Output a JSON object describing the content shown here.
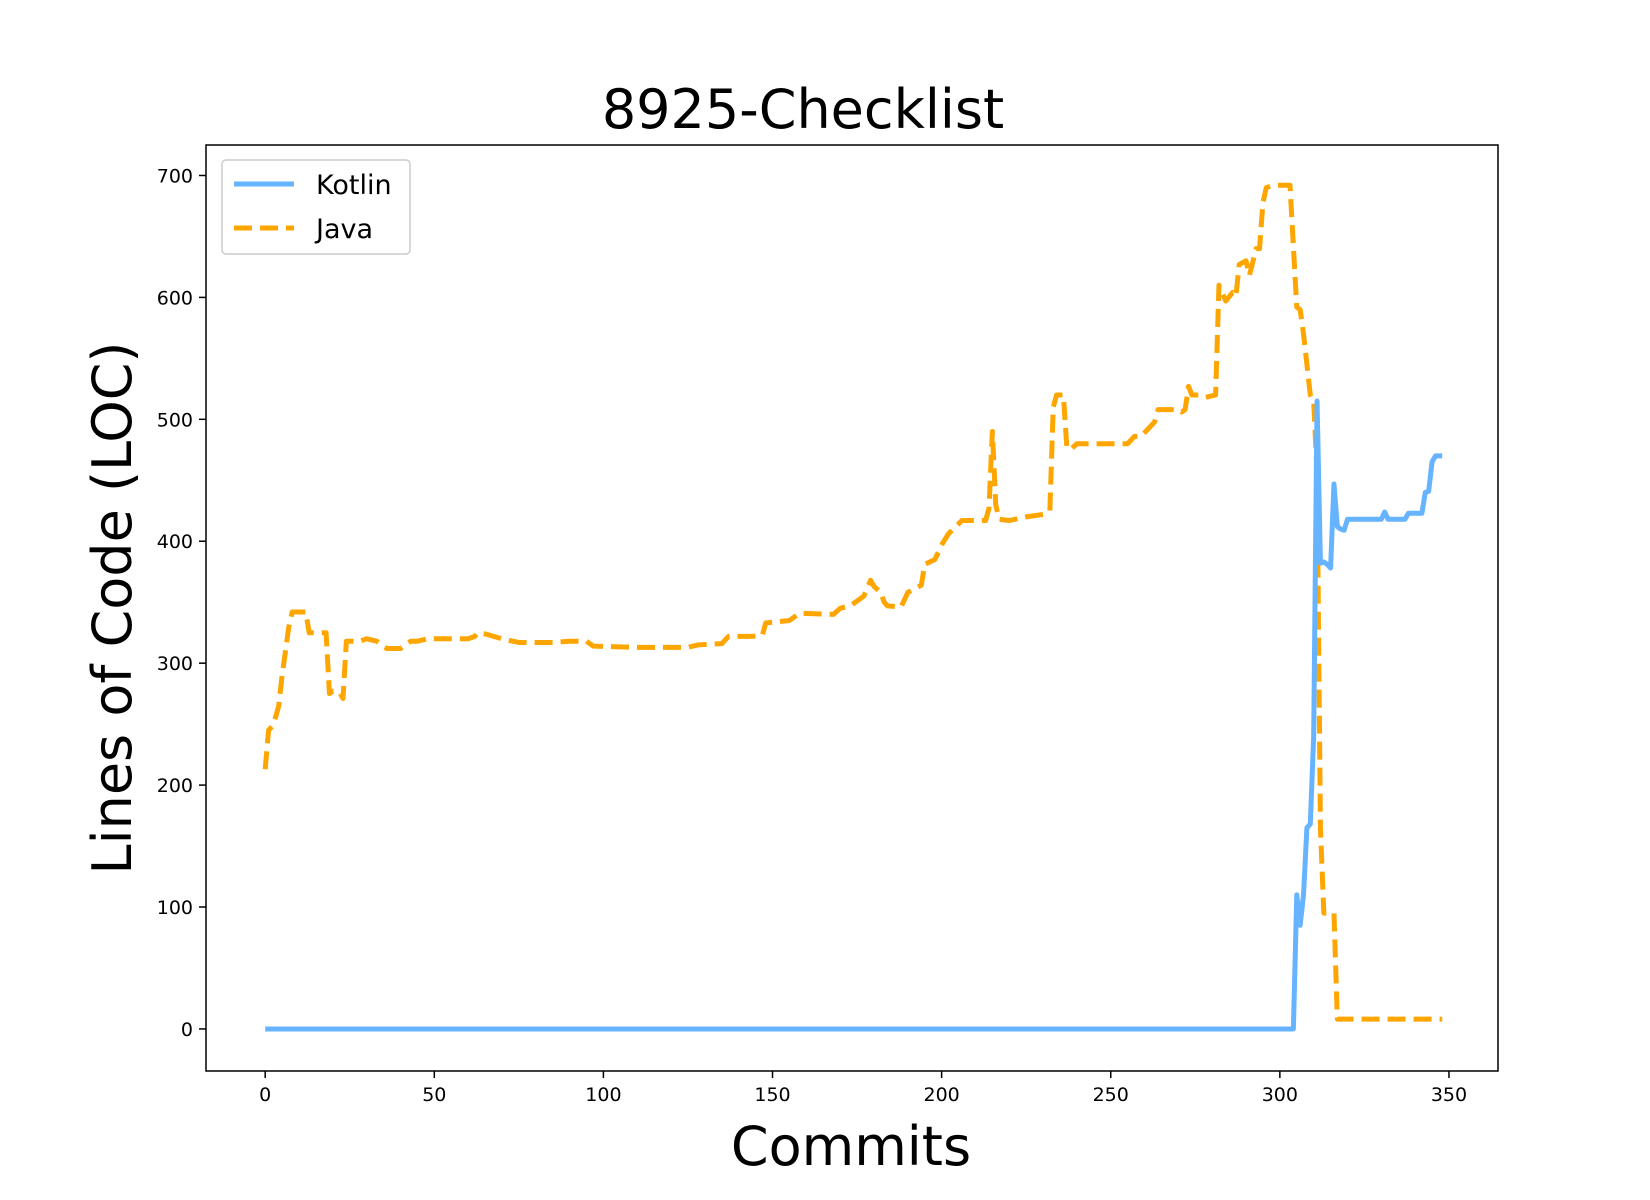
{
  "chart_data": {
    "type": "line",
    "title": "8925-Checklist",
    "xlabel": "Commits",
    "ylabel": "Lines of Code (LOC)",
    "xlim": [
      -17.5,
      364.5
    ],
    "ylim": [
      -34.5,
      725
    ],
    "xticks": [
      0,
      50,
      100,
      150,
      200,
      250,
      300,
      350
    ],
    "yticks": [
      0,
      100,
      200,
      300,
      400,
      500,
      600,
      700
    ],
    "grid": false,
    "legend_position": "top-left",
    "series": [
      {
        "name": "Kotlin",
        "color": "#66b3ff",
        "style": "solid",
        "points": [
          [
            0,
            0
          ],
          [
            304,
            0
          ],
          [
            305,
            110
          ],
          [
            306,
            85
          ],
          [
            307,
            110
          ],
          [
            308,
            165
          ],
          [
            309,
            168
          ],
          [
            310,
            240
          ],
          [
            311,
            515
          ],
          [
            312,
            382
          ],
          [
            313,
            383
          ],
          [
            314,
            381
          ],
          [
            315,
            378
          ],
          [
            316,
            447
          ],
          [
            317,
            412
          ],
          [
            318,
            410
          ],
          [
            319,
            409
          ],
          [
            320,
            418
          ],
          [
            325,
            418
          ],
          [
            330,
            418
          ],
          [
            331,
            424
          ],
          [
            332,
            418
          ],
          [
            337,
            418
          ],
          [
            338,
            423
          ],
          [
            342,
            423
          ],
          [
            343,
            440
          ],
          [
            344,
            441
          ],
          [
            345,
            465
          ],
          [
            346,
            470
          ],
          [
            348,
            470
          ]
        ]
      },
      {
        "name": "Java",
        "color": "#ffa500",
        "style": "dashed",
        "points": [
          [
            0,
            213
          ],
          [
            1,
            245
          ],
          [
            2,
            248
          ],
          [
            3,
            255
          ],
          [
            4,
            265
          ],
          [
            5,
            290
          ],
          [
            6,
            310
          ],
          [
            7,
            330
          ],
          [
            8,
            342
          ],
          [
            12,
            342
          ],
          [
            13,
            325
          ],
          [
            18,
            325
          ],
          [
            19,
            275
          ],
          [
            20,
            277
          ],
          [
            22,
            276
          ],
          [
            23,
            271
          ],
          [
            24,
            318
          ],
          [
            28,
            318
          ],
          [
            30,
            320
          ],
          [
            33,
            318
          ],
          [
            36,
            312
          ],
          [
            40,
            312
          ],
          [
            43,
            318
          ],
          [
            45,
            318
          ],
          [
            48,
            320
          ],
          [
            52,
            320
          ],
          [
            60,
            320
          ],
          [
            62,
            322
          ],
          [
            63,
            325
          ],
          [
            65,
            324
          ],
          [
            70,
            320
          ],
          [
            75,
            317
          ],
          [
            85,
            317
          ],
          [
            90,
            318
          ],
          [
            95,
            318
          ],
          [
            97,
            314
          ],
          [
            110,
            313
          ],
          [
            125,
            313
          ],
          [
            128,
            315
          ],
          [
            135,
            316
          ],
          [
            137,
            322
          ],
          [
            144,
            322
          ],
          [
            147,
            323
          ],
          [
            148,
            333
          ],
          [
            155,
            335
          ],
          [
            158,
            341
          ],
          [
            168,
            340
          ],
          [
            170,
            345
          ],
          [
            173,
            347
          ],
          [
            177,
            355
          ],
          [
            179,
            368
          ],
          [
            180,
            363
          ],
          [
            182,
            358
          ],
          [
            183,
            350
          ],
          [
            184,
            347
          ],
          [
            188,
            346
          ],
          [
            190,
            358
          ],
          [
            192,
            361
          ],
          [
            194,
            364
          ],
          [
            195,
            381
          ],
          [
            198,
            385
          ],
          [
            200,
            397
          ],
          [
            202,
            406
          ],
          [
            206,
            417
          ],
          [
            213,
            417
          ],
          [
            214,
            427
          ],
          [
            215,
            490
          ],
          [
            216,
            430
          ],
          [
            217,
            418
          ],
          [
            220,
            417
          ],
          [
            225,
            420
          ],
          [
            230,
            422
          ],
          [
            232,
            425
          ],
          [
            233,
            510
          ],
          [
            234,
            520
          ],
          [
            236,
            520
          ],
          [
            237,
            478
          ],
          [
            238,
            475
          ],
          [
            240,
            480
          ],
          [
            250,
            480
          ],
          [
            255,
            480
          ],
          [
            257,
            486
          ],
          [
            259,
            486
          ],
          [
            263,
            498
          ],
          [
            264,
            508
          ],
          [
            270,
            508
          ],
          [
            271,
            506
          ],
          [
            272,
            508
          ],
          [
            273,
            527
          ],
          [
            274,
            520
          ],
          [
            276,
            520
          ],
          [
            278,
            518
          ],
          [
            281,
            520
          ],
          [
            282,
            610
          ],
          [
            284,
            597
          ],
          [
            286,
            604
          ],
          [
            287,
            601
          ],
          [
            288,
            627
          ],
          [
            290,
            630
          ],
          [
            291,
            618
          ],
          [
            293,
            640
          ],
          [
            294,
            640
          ],
          [
            295,
            678
          ],
          [
            296,
            690
          ],
          [
            298,
            692
          ],
          [
            302,
            692
          ],
          [
            303,
            692
          ],
          [
            305,
            592
          ],
          [
            306,
            590
          ],
          [
            307,
            570
          ],
          [
            308,
            545
          ],
          [
            309,
            520
          ],
          [
            310,
            515
          ],
          [
            311,
            455
          ],
          [
            312,
            165
          ],
          [
            313,
            95
          ],
          [
            316,
            95
          ],
          [
            317,
            8
          ],
          [
            335,
            8
          ],
          [
            345,
            8
          ],
          [
            348,
            8
          ]
        ]
      }
    ]
  }
}
